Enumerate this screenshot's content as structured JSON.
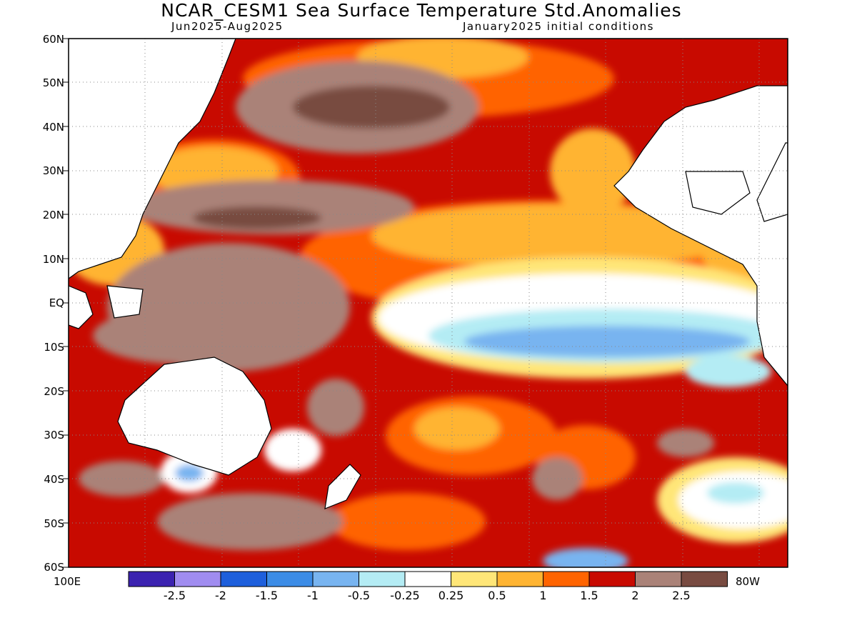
{
  "title": "NCAR_CESM1 Sea Surface Temperature Std.Anomalies",
  "subtitle_left": "Jun2025-Aug2025",
  "subtitle_right": "January2025 initial conditions",
  "map": {
    "lat_labels": [
      "60N",
      "50N",
      "40N",
      "30N",
      "20N",
      "10N",
      "EQ",
      "10S",
      "20S",
      "30S",
      "40S",
      "50S",
      "60S"
    ],
    "lon_left": "100E",
    "lon_right": "80W",
    "lat_range": [
      -60,
      60
    ],
    "lon_range": [
      "100E",
      "80W"
    ],
    "grid": "dotted"
  },
  "colorbar": {
    "labels": [
      "-2.5",
      "-2",
      "-1.5",
      "-1",
      "-0.5",
      "-0.25",
      "0.25",
      "0.5",
      "1",
      "1.5",
      "2",
      "2.5"
    ],
    "colors": [
      "#3b22b0",
      "#a08cf0",
      "#1e5fdc",
      "#3c8ce6",
      "#78b4f0",
      "#b4ecf4",
      "#ffffff",
      "#ffe678",
      "#ffb432",
      "#ff6400",
      "#c80a00",
      "#aa8278",
      "#784b41"
    ]
  }
}
